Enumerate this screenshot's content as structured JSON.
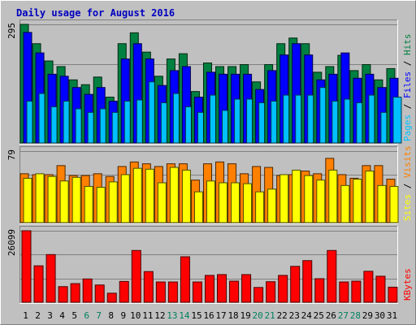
{
  "chart_data": {
    "type": "bar",
    "title": "Daily usage for August 2016",
    "categories": [
      "1",
      "2",
      "3",
      "4",
      "5",
      "6",
      "7",
      "8",
      "9",
      "10",
      "11",
      "12",
      "13",
      "14",
      "15",
      "16",
      "17",
      "18",
      "19",
      "20",
      "21",
      "22",
      "23",
      "24",
      "25",
      "26",
      "27",
      "28",
      "29",
      "30",
      "31"
    ],
    "weekend_days": [
      "6",
      "7",
      "13",
      "14",
      "20",
      "21",
      "27",
      "28"
    ],
    "panels": [
      {
        "name": "hits-files-pages",
        "ymax_label": "295",
        "ylim": [
          0,
          295
        ],
        "grid": true,
        "legend": [
          "Pages",
          "Files",
          "Hits"
        ],
        "series": [
          {
            "name": "Hits",
            "color": "#008040",
            "values": [
              295,
              247,
              204,
              190,
              157,
              145,
              164,
              114,
              247,
              274,
              226,
              166,
              209,
              222,
              128,
              199,
              190,
              190,
              195,
              152,
              195,
              247,
              261,
              247,
              176,
              190,
              218,
              180,
              195,
              157,
              185
            ]
          },
          {
            "name": "Files",
            "color": "#0000ff",
            "values": [
              275,
              224,
              171,
              166,
              138,
              121,
              138,
              104,
              209,
              247,
              209,
              143,
              180,
              190,
              114,
              176,
              171,
              171,
              171,
              133,
              180,
              219,
              247,
              219,
              157,
              171,
              224,
              161,
              171,
              138,
              161
            ]
          },
          {
            "name": "Pages",
            "color": "#00c0ff",
            "values": [
              104,
              123,
              90,
              104,
              85,
              76,
              85,
              76,
              104,
              107,
              152,
              100,
              123,
              90,
              76,
              119,
              81,
              109,
              109,
              100,
              104,
              119,
              119,
              119,
              138,
              104,
              109,
              100,
              119,
              76,
              114
            ]
          }
        ]
      },
      {
        "name": "visits-sites",
        "ymax_label": "79",
        "ylim": [
          0,
          79
        ],
        "grid": true,
        "legend": [
          "Sites",
          "Visits"
        ],
        "series": [
          {
            "name": "Visits",
            "color": "#ff8000",
            "values": [
              54,
              53,
              53,
              63,
              52,
              52,
              54,
              51,
              62,
              67,
              65,
              62,
              65,
              65,
              47,
              65,
              67,
              65,
              54,
              62,
              61,
              52,
              53,
              57,
              54,
              71,
              53,
              49,
              63,
              63,
              48
            ]
          },
          {
            "name": "Sites",
            "color": "#ffff00",
            "values": [
              49,
              54,
              51,
              46,
              50,
              40,
              39,
              45,
              53,
              60,
              59,
              44,
              61,
              58,
              34,
              46,
              44,
              44,
              43,
              34,
              37,
              53,
              58,
              52,
              47,
              58,
              41,
              48,
              57,
              41,
              40
            ]
          }
        ]
      },
      {
        "name": "kbytes",
        "ymax_label": "26099",
        "ylim": [
          0,
          26099
        ],
        "grid": true,
        "legend": [
          "KBytes"
        ],
        "series": [
          {
            "name": "KBytes",
            "color": "#ff0000",
            "values": [
              26099,
              13300,
              17400,
              5700,
              6800,
              8500,
              6300,
              3300,
              7600,
              18900,
              11200,
              7400,
              7400,
              16600,
              7400,
              9800,
              10100,
              7700,
              10100,
              5400,
              7500,
              9800,
              13100,
              15200,
              8600,
              18900,
              7400,
              7700,
              11300,
              9500,
              5500
            ]
          }
        ]
      }
    ]
  }
}
